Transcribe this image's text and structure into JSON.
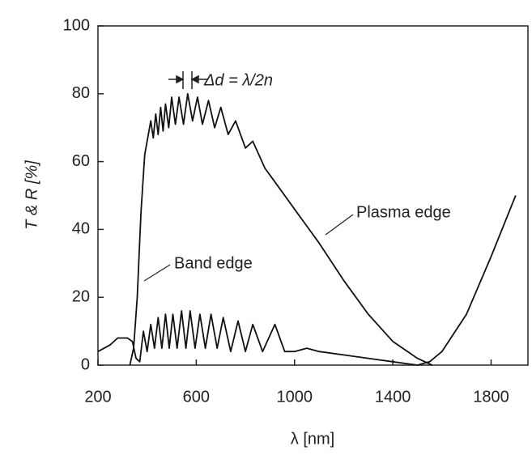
{
  "chart_data": {
    "type": "line",
    "xlabel": "λ [nm]",
    "ylabel": "T & R [%]",
    "annotations": [
      "Δd = λ/2n",
      "Plasma edge",
      "Band edge"
    ],
    "xlim": [
      200,
      1950
    ],
    "ylim": [
      0,
      100
    ],
    "xticks": [
      200,
      600,
      1000,
      1400,
      1800
    ],
    "yticks": [
      0,
      20,
      40,
      60,
      80,
      100
    ],
    "series": [
      {
        "color": "#111111",
        "x": [
          330,
          345,
          360,
          375,
          390,
          405,
          415,
          425,
          435,
          445,
          455,
          465,
          475,
          488,
          500,
          515,
          530,
          548,
          565,
          585,
          605,
          625,
          650,
          675,
          700,
          730,
          760,
          800,
          830,
          880,
          920,
          1000,
          1100,
          1200,
          1300,
          1400,
          1500,
          1560
        ],
        "values": [
          0,
          5,
          20,
          45,
          62,
          68,
          72,
          67,
          74,
          68,
          76,
          69,
          77,
          70,
          79,
          71,
          79,
          71,
          80,
          72,
          79,
          71,
          78,
          70,
          76,
          68,
          72,
          64,
          66,
          58,
          54,
          46,
          36,
          25,
          15,
          7,
          2,
          0
        ]
      },
      {
        "color": "#111111",
        "x": [
          200,
          250,
          280,
          320,
          340,
          355,
          370,
          385,
          400,
          415,
          430,
          445,
          460,
          475,
          490,
          505,
          522,
          540,
          558,
          575,
          595,
          615,
          637,
          660,
          685,
          710,
          740,
          770,
          800,
          830,
          870,
          920,
          960,
          1000,
          1050,
          1100,
          1200,
          1300,
          1400,
          1500,
          1550,
          1600,
          1700,
          1800,
          1900
        ],
        "values": [
          4,
          6,
          8,
          8,
          7,
          2,
          1,
          10,
          4,
          12,
          5,
          14,
          5,
          15,
          5,
          15,
          5,
          16,
          5,
          16,
          5,
          15,
          5,
          15,
          5,
          14,
          4,
          13,
          4,
          12,
          4,
          12,
          4,
          4,
          5,
          4,
          3,
          2,
          1,
          0,
          1,
          4,
          15,
          32,
          50
        ]
      }
    ]
  }
}
